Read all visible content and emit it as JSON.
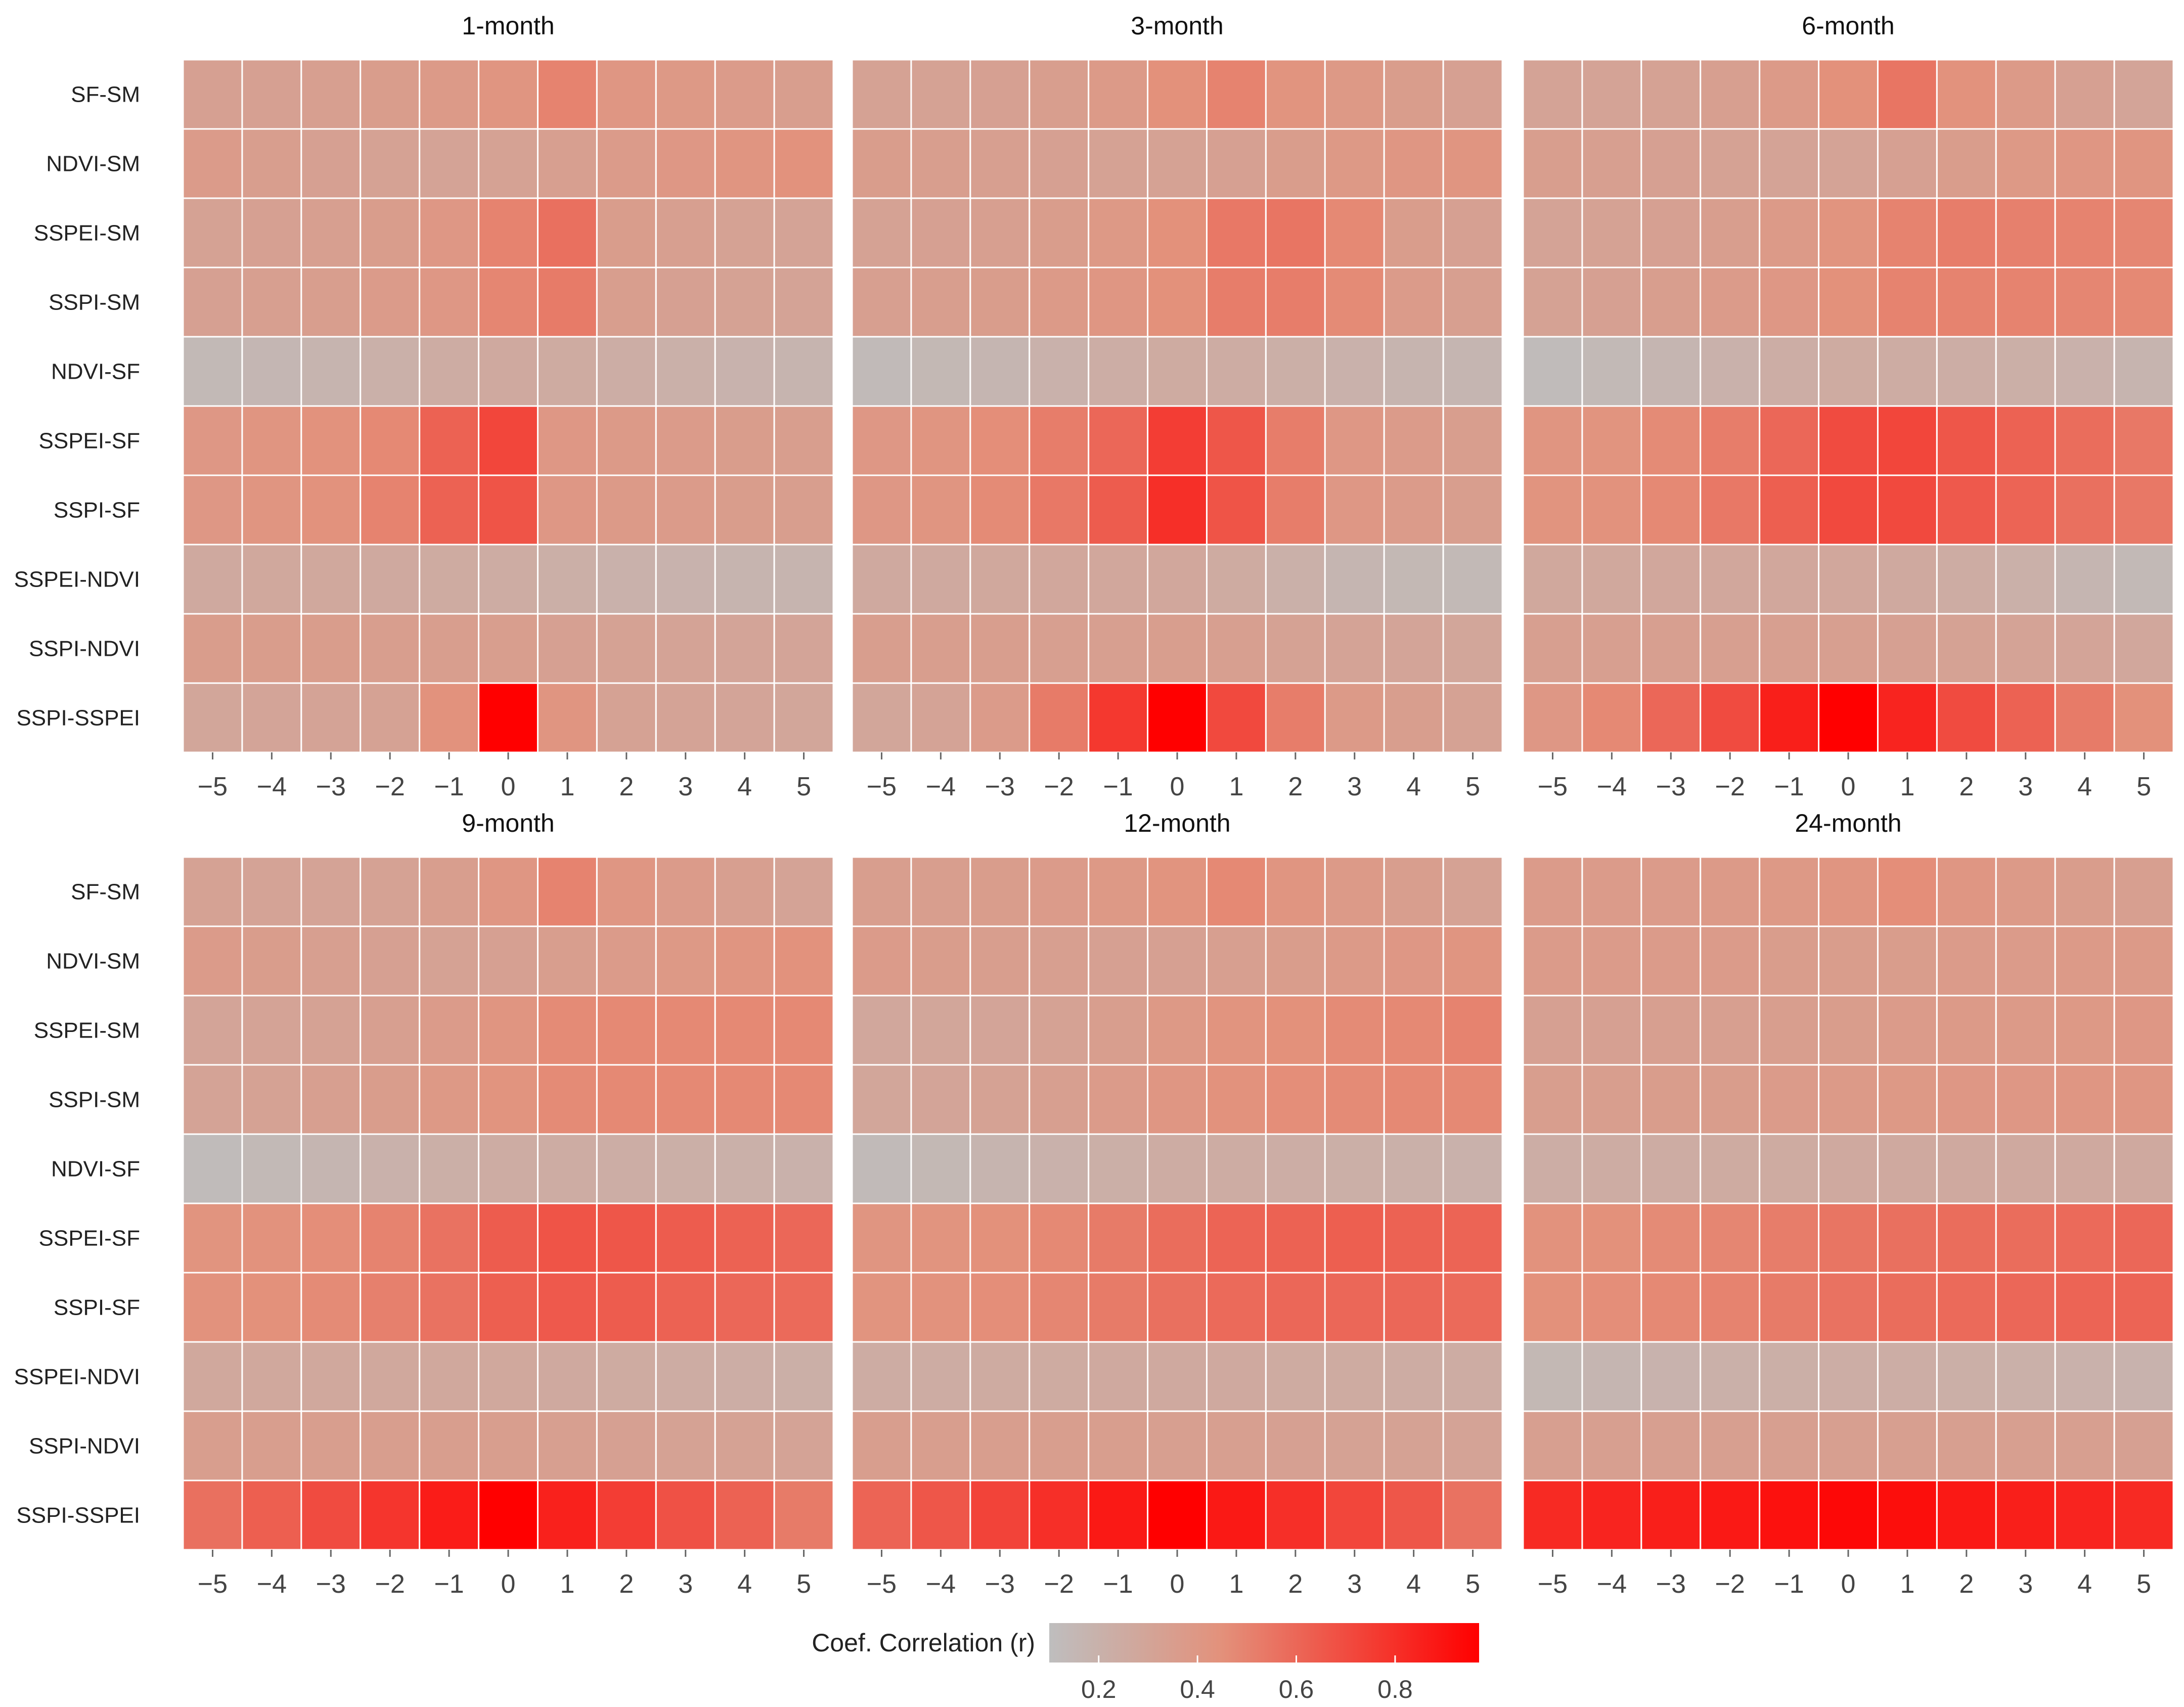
{
  "chart_data": {
    "type": "heatmap",
    "description_rows": [
      "SF-SM",
      "NDVI-SM",
      "SSPEI-SM",
      "SSPI-SM",
      "NDVI-SF",
      "SSPEI-SF",
      "SSPI-SF",
      "SSPEI-NDVI",
      "SSPI-NDVI",
      "SSPI-SSPEI"
    ],
    "rows": [
      "SF-SM",
      "NDVI-SM",
      "SSPEI-SM",
      "SSPI-SM",
      "NDVI-SF",
      "SSPEI-SF",
      "SSPI-SF",
      "SSPEI-NDVI",
      "SSPI-NDVI",
      "SSPI-SSPEI"
    ],
    "lags": [
      -5,
      -4,
      -3,
      -2,
      -1,
      0,
      1,
      2,
      3,
      4,
      5
    ],
    "x_tick_labels": [
      "−5",
      "−4",
      "−3",
      "−2",
      "−1",
      "0",
      "1",
      "2",
      "3",
      "4",
      "5"
    ],
    "legend": {
      "title": "Coef. Correlation (r)",
      "ticks": [
        0.2,
        0.4,
        0.6,
        0.8
      ],
      "tick_labels": [
        "0.2",
        "0.4",
        "0.6",
        "0.8"
      ],
      "range": [
        0.1,
        0.97
      ],
      "color_low": "#bebebe",
      "color_mid": "#e3917b",
      "color_high": "#ff0000"
    },
    "panels": [
      {
        "title": "1-month",
        "values": [
          [
            0.33,
            0.33,
            0.34,
            0.36,
            0.38,
            0.42,
            0.5,
            0.41,
            0.39,
            0.37,
            0.35
          ],
          [
            0.37,
            0.35,
            0.33,
            0.32,
            0.31,
            0.32,
            0.34,
            0.37,
            0.4,
            0.42,
            0.44
          ],
          [
            0.32,
            0.33,
            0.34,
            0.36,
            0.4,
            0.5,
            0.57,
            0.36,
            0.34,
            0.32,
            0.31
          ],
          [
            0.33,
            0.34,
            0.35,
            0.37,
            0.4,
            0.49,
            0.53,
            0.35,
            0.33,
            0.32,
            0.31
          ],
          [
            0.14,
            0.16,
            0.18,
            0.21,
            0.24,
            0.26,
            0.25,
            0.23,
            0.21,
            0.19,
            0.18
          ],
          [
            0.4,
            0.42,
            0.44,
            0.48,
            0.62,
            0.72,
            0.4,
            0.38,
            0.37,
            0.36,
            0.35
          ],
          [
            0.4,
            0.42,
            0.44,
            0.5,
            0.62,
            0.67,
            0.4,
            0.38,
            0.37,
            0.36,
            0.35
          ],
          [
            0.26,
            0.27,
            0.27,
            0.26,
            0.25,
            0.24,
            0.22,
            0.2,
            0.19,
            0.18,
            0.18
          ],
          [
            0.36,
            0.36,
            0.36,
            0.35,
            0.35,
            0.35,
            0.33,
            0.32,
            0.31,
            0.3,
            0.3
          ],
          [
            0.29,
            0.3,
            0.31,
            0.32,
            0.44,
            0.97,
            0.42,
            0.32,
            0.31,
            0.3,
            0.29
          ]
        ]
      },
      {
        "title": "3-month",
        "values": [
          [
            0.32,
            0.32,
            0.33,
            0.35,
            0.38,
            0.45,
            0.5,
            0.43,
            0.39,
            0.36,
            0.33
          ],
          [
            0.36,
            0.35,
            0.34,
            0.33,
            0.32,
            0.32,
            0.33,
            0.36,
            0.39,
            0.41,
            0.42
          ],
          [
            0.32,
            0.33,
            0.34,
            0.36,
            0.39,
            0.45,
            0.54,
            0.55,
            0.48,
            0.36,
            0.33
          ],
          [
            0.34,
            0.35,
            0.36,
            0.38,
            0.41,
            0.45,
            0.52,
            0.52,
            0.47,
            0.37,
            0.34
          ],
          [
            0.13,
            0.15,
            0.17,
            0.2,
            0.23,
            0.25,
            0.24,
            0.22,
            0.2,
            0.18,
            0.17
          ],
          [
            0.4,
            0.42,
            0.46,
            0.52,
            0.6,
            0.75,
            0.66,
            0.52,
            0.4,
            0.37,
            0.35
          ],
          [
            0.4,
            0.42,
            0.47,
            0.54,
            0.64,
            0.8,
            0.67,
            0.52,
            0.4,
            0.37,
            0.35
          ],
          [
            0.26,
            0.26,
            0.27,
            0.28,
            0.28,
            0.28,
            0.25,
            0.21,
            0.17,
            0.15,
            0.14
          ],
          [
            0.35,
            0.35,
            0.35,
            0.34,
            0.34,
            0.35,
            0.34,
            0.32,
            0.31,
            0.3,
            0.29
          ],
          [
            0.29,
            0.31,
            0.37,
            0.53,
            0.77,
            0.98,
            0.71,
            0.52,
            0.38,
            0.35,
            0.32
          ]
        ]
      },
      {
        "title": "6-month",
        "values": [
          [
            0.31,
            0.31,
            0.32,
            0.34,
            0.38,
            0.45,
            0.55,
            0.44,
            0.38,
            0.33,
            0.3
          ],
          [
            0.35,
            0.34,
            0.33,
            0.32,
            0.31,
            0.31,
            0.33,
            0.36,
            0.39,
            0.41,
            0.42
          ],
          [
            0.31,
            0.32,
            0.33,
            0.35,
            0.38,
            0.43,
            0.5,
            0.52,
            0.51,
            0.5,
            0.49
          ],
          [
            0.32,
            0.33,
            0.35,
            0.37,
            0.4,
            0.45,
            0.5,
            0.5,
            0.5,
            0.49,
            0.48
          ],
          [
            0.12,
            0.14,
            0.17,
            0.2,
            0.23,
            0.25,
            0.24,
            0.23,
            0.22,
            0.2,
            0.18
          ],
          [
            0.42,
            0.43,
            0.47,
            0.52,
            0.6,
            0.7,
            0.72,
            0.66,
            0.62,
            0.58,
            0.54
          ],
          [
            0.43,
            0.44,
            0.48,
            0.54,
            0.63,
            0.71,
            0.71,
            0.65,
            0.61,
            0.57,
            0.54
          ],
          [
            0.27,
            0.27,
            0.28,
            0.28,
            0.28,
            0.28,
            0.26,
            0.24,
            0.21,
            0.17,
            0.14
          ],
          [
            0.34,
            0.34,
            0.34,
            0.34,
            0.34,
            0.34,
            0.33,
            0.32,
            0.31,
            0.3,
            0.28
          ],
          [
            0.4,
            0.48,
            0.6,
            0.7,
            0.86,
            0.97,
            0.84,
            0.7,
            0.62,
            0.53,
            0.45
          ]
        ]
      },
      {
        "title": "9-month",
        "values": [
          [
            0.32,
            0.31,
            0.31,
            0.32,
            0.35,
            0.41,
            0.5,
            0.41,
            0.37,
            0.34,
            0.31
          ],
          [
            0.37,
            0.36,
            0.34,
            0.33,
            0.32,
            0.33,
            0.35,
            0.37,
            0.39,
            0.42,
            0.44
          ],
          [
            0.3,
            0.31,
            0.32,
            0.34,
            0.37,
            0.42,
            0.47,
            0.48,
            0.48,
            0.48,
            0.48
          ],
          [
            0.31,
            0.32,
            0.34,
            0.36,
            0.39,
            0.43,
            0.47,
            0.48,
            0.48,
            0.48,
            0.48
          ],
          [
            0.12,
            0.14,
            0.17,
            0.2,
            0.22,
            0.24,
            0.24,
            0.23,
            0.22,
            0.21,
            0.2
          ],
          [
            0.43,
            0.44,
            0.46,
            0.5,
            0.56,
            0.64,
            0.67,
            0.66,
            0.64,
            0.62,
            0.6
          ],
          [
            0.44,
            0.45,
            0.47,
            0.51,
            0.56,
            0.63,
            0.65,
            0.64,
            0.62,
            0.6,
            0.59
          ],
          [
            0.27,
            0.27,
            0.27,
            0.27,
            0.27,
            0.27,
            0.26,
            0.25,
            0.24,
            0.23,
            0.22
          ],
          [
            0.35,
            0.35,
            0.35,
            0.35,
            0.35,
            0.35,
            0.34,
            0.33,
            0.32,
            0.32,
            0.31
          ],
          [
            0.57,
            0.63,
            0.7,
            0.78,
            0.87,
            0.97,
            0.85,
            0.75,
            0.68,
            0.62,
            0.53
          ]
        ]
      },
      {
        "title": "12-month",
        "values": [
          [
            0.35,
            0.35,
            0.36,
            0.37,
            0.39,
            0.43,
            0.48,
            0.42,
            0.38,
            0.35,
            0.32
          ],
          [
            0.37,
            0.36,
            0.35,
            0.34,
            0.33,
            0.33,
            0.34,
            0.36,
            0.38,
            0.4,
            0.42
          ],
          [
            0.28,
            0.29,
            0.3,
            0.32,
            0.35,
            0.39,
            0.43,
            0.45,
            0.47,
            0.48,
            0.5
          ],
          [
            0.29,
            0.3,
            0.32,
            0.34,
            0.37,
            0.41,
            0.44,
            0.46,
            0.47,
            0.48,
            0.48
          ],
          [
            0.13,
            0.15,
            0.18,
            0.2,
            0.22,
            0.24,
            0.24,
            0.23,
            0.22,
            0.21,
            0.2
          ],
          [
            0.42,
            0.43,
            0.45,
            0.48,
            0.53,
            0.58,
            0.61,
            0.62,
            0.63,
            0.62,
            0.61
          ],
          [
            0.43,
            0.44,
            0.46,
            0.49,
            0.53,
            0.57,
            0.59,
            0.6,
            0.6,
            0.6,
            0.59
          ],
          [
            0.24,
            0.24,
            0.25,
            0.25,
            0.26,
            0.26,
            0.26,
            0.25,
            0.25,
            0.24,
            0.24
          ],
          [
            0.35,
            0.35,
            0.35,
            0.35,
            0.35,
            0.34,
            0.34,
            0.33,
            0.32,
            0.32,
            0.31
          ],
          [
            0.61,
            0.66,
            0.73,
            0.8,
            0.88,
            0.97,
            0.88,
            0.8,
            0.72,
            0.66,
            0.56
          ]
        ]
      },
      {
        "title": "24-month",
        "values": [
          [
            0.37,
            0.37,
            0.37,
            0.38,
            0.39,
            0.42,
            0.46,
            0.41,
            0.38,
            0.36,
            0.34
          ],
          [
            0.37,
            0.37,
            0.37,
            0.37,
            0.36,
            0.36,
            0.36,
            0.37,
            0.37,
            0.38,
            0.38
          ],
          [
            0.33,
            0.33,
            0.34,
            0.34,
            0.35,
            0.36,
            0.37,
            0.38,
            0.38,
            0.39,
            0.4
          ],
          [
            0.35,
            0.35,
            0.36,
            0.36,
            0.37,
            0.38,
            0.39,
            0.4,
            0.4,
            0.41,
            0.41
          ],
          [
            0.23,
            0.24,
            0.24,
            0.25,
            0.25,
            0.26,
            0.26,
            0.26,
            0.26,
            0.26,
            0.26
          ],
          [
            0.44,
            0.45,
            0.47,
            0.49,
            0.52,
            0.55,
            0.57,
            0.58,
            0.58,
            0.59,
            0.6
          ],
          [
            0.45,
            0.46,
            0.48,
            0.5,
            0.53,
            0.56,
            0.58,
            0.59,
            0.6,
            0.61,
            0.61
          ],
          [
            0.15,
            0.17,
            0.19,
            0.21,
            0.22,
            0.23,
            0.23,
            0.22,
            0.21,
            0.2,
            0.19
          ],
          [
            0.34,
            0.34,
            0.34,
            0.34,
            0.34,
            0.34,
            0.34,
            0.34,
            0.34,
            0.34,
            0.33
          ],
          [
            0.82,
            0.84,
            0.86,
            0.88,
            0.91,
            0.94,
            0.92,
            0.88,
            0.86,
            0.84,
            0.82
          ]
        ]
      }
    ]
  }
}
